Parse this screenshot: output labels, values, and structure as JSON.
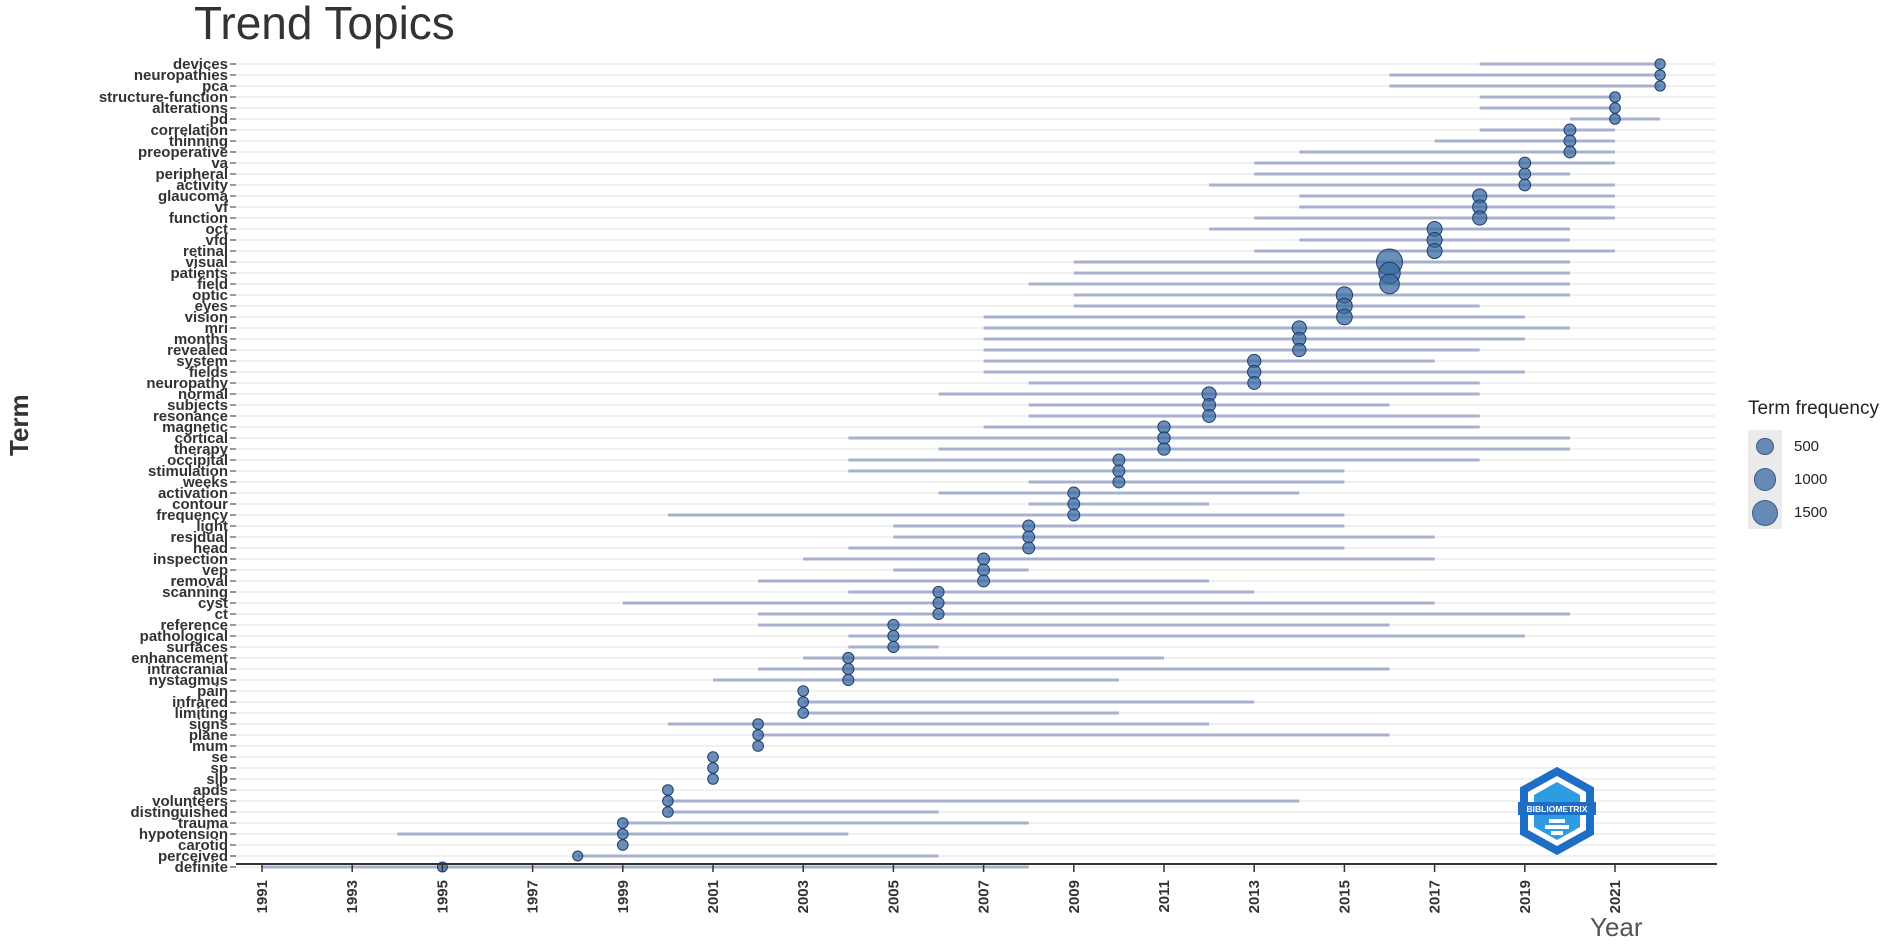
{
  "title": "Trend Topics",
  "colors": {
    "segment": "#9aa5c7",
    "point_fill": "#3a69a0",
    "point_stroke": "#1e3c6e",
    "grid": "#ebebeb",
    "logo": "#2f9be0"
  },
  "logo_icon": "bibliometrix-logo-icon",
  "logo_text": "BIBLIOMETRIX",
  "legend": {
    "title": "Term frequency",
    "entries": [
      {
        "label": "500",
        "value": 500
      },
      {
        "label": "1000",
        "value": 1000
      },
      {
        "label": "1500",
        "value": 1500
      }
    ]
  },
  "chart_data": {
    "type": "scatter",
    "title": "Trend Topics",
    "xlabel": "Year",
    "ylabel": "Term",
    "xlim": [
      1990,
      2024
    ],
    "x_ticks": [
      1991,
      1993,
      1995,
      1997,
      1999,
      2001,
      2003,
      2005,
      2007,
      2009,
      2011,
      2013,
      2015,
      2017,
      2019,
      2021
    ],
    "size_legend_title": "Term frequency",
    "grid": true,
    "legend_position": "right",
    "terms": [
      {
        "term": "devices",
        "start": 2018,
        "median": 2022,
        "end": 2022,
        "freq": 70
      },
      {
        "term": "neuropathies",
        "start": 2016,
        "median": 2022,
        "end": 2022,
        "freq": 70
      },
      {
        "term": "pca",
        "start": 2016,
        "median": 2022,
        "end": 2022,
        "freq": 70
      },
      {
        "term": "structure-function",
        "start": 2018,
        "median": 2021,
        "end": 2021,
        "freq": 80
      },
      {
        "term": "alterations",
        "start": 2018,
        "median": 2021,
        "end": 2021,
        "freq": 80
      },
      {
        "term": "pd",
        "start": 2020,
        "median": 2021,
        "end": 2022,
        "freq": 80
      },
      {
        "term": "correlation",
        "start": 2018,
        "median": 2020,
        "end": 2021,
        "freq": 130
      },
      {
        "term": "thinning",
        "start": 2017,
        "median": 2020,
        "end": 2021,
        "freq": 130
      },
      {
        "term": "preoperative",
        "start": 2014,
        "median": 2020,
        "end": 2021,
        "freq": 130
      },
      {
        "term": "va",
        "start": 2013,
        "median": 2019,
        "end": 2021,
        "freq": 120
      },
      {
        "term": "peripheral",
        "start": 2013,
        "median": 2019,
        "end": 2020,
        "freq": 120
      },
      {
        "term": "activity",
        "start": 2012,
        "median": 2019,
        "end": 2021,
        "freq": 120
      },
      {
        "term": "glaucoma",
        "start": 2014,
        "median": 2018,
        "end": 2021,
        "freq": 250
      },
      {
        "term": "vf",
        "start": 2014,
        "median": 2018,
        "end": 2021,
        "freq": 250
      },
      {
        "term": "function",
        "start": 2013,
        "median": 2018,
        "end": 2021,
        "freq": 250
      },
      {
        "term": "oct",
        "start": 2012,
        "median": 2017,
        "end": 2020,
        "freq": 300
      },
      {
        "term": "vfd",
        "start": 2014,
        "median": 2017,
        "end": 2020,
        "freq": 300
      },
      {
        "term": "retinal",
        "start": 2013,
        "median": 2017,
        "end": 2021,
        "freq": 300
      },
      {
        "term": "visual",
        "start": 2009,
        "median": 2016,
        "end": 2020,
        "freq": 1500
      },
      {
        "term": "patients",
        "start": 2009,
        "median": 2016,
        "end": 2020,
        "freq": 900
      },
      {
        "term": "field",
        "start": 2008,
        "median": 2016,
        "end": 2020,
        "freq": 700
      },
      {
        "term": "optic",
        "start": 2009,
        "median": 2015,
        "end": 2020,
        "freq": 400
      },
      {
        "term": "eyes",
        "start": 2009,
        "median": 2015,
        "end": 2018,
        "freq": 350
      },
      {
        "term": "vision",
        "start": 2007,
        "median": 2015,
        "end": 2019,
        "freq": 350
      },
      {
        "term": "mri",
        "start": 2007,
        "median": 2014,
        "end": 2020,
        "freq": 250
      },
      {
        "term": "months",
        "start": 2007,
        "median": 2014,
        "end": 2019,
        "freq": 200
      },
      {
        "term": "revealed",
        "start": 2007,
        "median": 2014,
        "end": 2018,
        "freq": 200
      },
      {
        "term": "system",
        "start": 2007,
        "median": 2013,
        "end": 2017,
        "freq": 200
      },
      {
        "term": "fields",
        "start": 2007,
        "median": 2013,
        "end": 2019,
        "freq": 200
      },
      {
        "term": "neuropathy",
        "start": 2008,
        "median": 2013,
        "end": 2018,
        "freq": 180
      },
      {
        "term": "normal",
        "start": 2006,
        "median": 2012,
        "end": 2018,
        "freq": 250
      },
      {
        "term": "subjects",
        "start": 2008,
        "median": 2012,
        "end": 2016,
        "freq": 180
      },
      {
        "term": "resonance",
        "start": 2008,
        "median": 2012,
        "end": 2018,
        "freq": 180
      },
      {
        "term": "magnetic",
        "start": 2007,
        "median": 2011,
        "end": 2018,
        "freq": 150
      },
      {
        "term": "cortical",
        "start": 2004,
        "median": 2011,
        "end": 2020,
        "freq": 150
      },
      {
        "term": "therapy",
        "start": 2006,
        "median": 2011,
        "end": 2020,
        "freq": 150
      },
      {
        "term": "occipital",
        "start": 2004,
        "median": 2010,
        "end": 2018,
        "freq": 130
      },
      {
        "term": "stimulation",
        "start": 2004,
        "median": 2010,
        "end": 2015,
        "freq": 130
      },
      {
        "term": "weeks",
        "start": 2008,
        "median": 2010,
        "end": 2015,
        "freq": 130
      },
      {
        "term": "activation",
        "start": 2006,
        "median": 2009,
        "end": 2014,
        "freq": 130
      },
      {
        "term": "contour",
        "start": 2008,
        "median": 2009,
        "end": 2012,
        "freq": 130
      },
      {
        "term": "frequency",
        "start": 2000,
        "median": 2009,
        "end": 2015,
        "freq": 130
      },
      {
        "term": "light",
        "start": 2005,
        "median": 2008,
        "end": 2015,
        "freq": 130
      },
      {
        "term": "residual",
        "start": 2005,
        "median": 2008,
        "end": 2017,
        "freq": 130
      },
      {
        "term": "head",
        "start": 2004,
        "median": 2008,
        "end": 2015,
        "freq": 130
      },
      {
        "term": "inspection",
        "start": 2003,
        "median": 2007,
        "end": 2017,
        "freq": 130
      },
      {
        "term": "vep",
        "start": 2005,
        "median": 2007,
        "end": 2008,
        "freq": 130
      },
      {
        "term": "removal",
        "start": 2002,
        "median": 2007,
        "end": 2012,
        "freq": 130
      },
      {
        "term": "scanning",
        "start": 2004,
        "median": 2006,
        "end": 2013,
        "freq": 100
      },
      {
        "term": "cyst",
        "start": 1999,
        "median": 2006,
        "end": 2017,
        "freq": 100
      },
      {
        "term": "ct",
        "start": 2002,
        "median": 2006,
        "end": 2020,
        "freq": 100
      },
      {
        "term": "reference",
        "start": 2002,
        "median": 2005,
        "end": 2016,
        "freq": 100
      },
      {
        "term": "pathological",
        "start": 2004,
        "median": 2005,
        "end": 2019,
        "freq": 100
      },
      {
        "term": "surfaces",
        "start": 2004,
        "median": 2005,
        "end": 2006,
        "freq": 100
      },
      {
        "term": "enhancement",
        "start": 2003,
        "median": 2004,
        "end": 2011,
        "freq": 100
      },
      {
        "term": "intracranial",
        "start": 2002,
        "median": 2004,
        "end": 2016,
        "freq": 100
      },
      {
        "term": "nystagmus",
        "start": 2001,
        "median": 2004,
        "end": 2010,
        "freq": 100
      },
      {
        "term": "pain",
        "start": 2003,
        "median": 2003,
        "end": 2003,
        "freq": 80
      },
      {
        "term": "infrared",
        "start": 2003,
        "median": 2003,
        "end": 2013,
        "freq": 80
      },
      {
        "term": "limiting",
        "start": 2003,
        "median": 2003,
        "end": 2010,
        "freq": 80
      },
      {
        "term": "signs",
        "start": 2000,
        "median": 2002,
        "end": 2012,
        "freq": 80
      },
      {
        "term": "plane",
        "start": 2002,
        "median": 2002,
        "end": 2016,
        "freq": 80
      },
      {
        "term": "mum",
        "start": 2002,
        "median": 2002,
        "end": 2002,
        "freq": 80
      },
      {
        "term": "se",
        "start": 2001,
        "median": 2001,
        "end": 2001,
        "freq": 80
      },
      {
        "term": "sp",
        "start": 2001,
        "median": 2001,
        "end": 2001,
        "freq": 80
      },
      {
        "term": "slp",
        "start": 2001,
        "median": 2001,
        "end": 2001,
        "freq": 80
      },
      {
        "term": "apds",
        "start": 2000,
        "median": 2000,
        "end": 2000,
        "freq": 80
      },
      {
        "term": "volunteers",
        "start": 2000,
        "median": 2000,
        "end": 2014,
        "freq": 80
      },
      {
        "term": "distinguished",
        "start": 2000,
        "median": 2000,
        "end": 2006,
        "freq": 80
      },
      {
        "term": "trauma",
        "start": 1999,
        "median": 1999,
        "end": 2008,
        "freq": 80
      },
      {
        "term": "hypotension",
        "start": 1994,
        "median": 1999,
        "end": 2004,
        "freq": 80
      },
      {
        "term": "carotid",
        "start": 1999,
        "median": 1999,
        "end": 1999,
        "freq": 80
      },
      {
        "term": "perceived",
        "start": 1998,
        "median": 1998,
        "end": 2006,
        "freq": 60
      },
      {
        "term": "definite",
        "start": 1991,
        "median": 1995,
        "end": 2008,
        "freq": 60
      }
    ]
  }
}
